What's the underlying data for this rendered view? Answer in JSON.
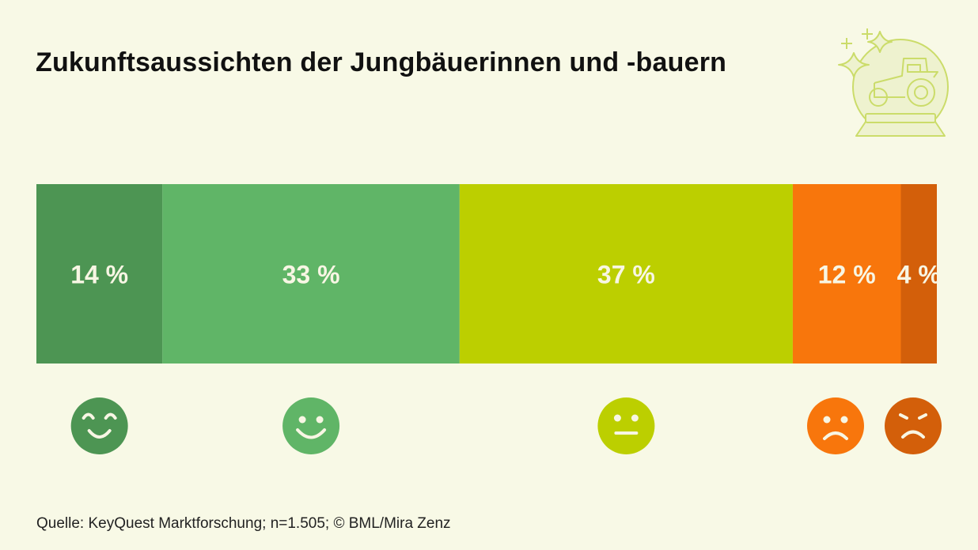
{
  "title": "Zukunftsaussichten der Jungbäuerinnen und -bauern",
  "source": "Quelle: KeyQuest Marktforschung; n=1.505; © BML/Mira Zenz",
  "logo_icon": "crystal-ball-tractor-icon",
  "chart_data": {
    "type": "bar",
    "orientation": "horizontal-stacked-100",
    "title": "Zukunftsaussichten der Jungbäuerinnen und -bauern",
    "xlabel": "",
    "ylabel": "",
    "xlim": [
      0,
      100
    ],
    "grid": false,
    "legend": "icons-below",
    "series": [
      {
        "name": "very-positive",
        "value": 14,
        "label": "14 %",
        "color": "#4d9553",
        "icon": "grinning-face-icon"
      },
      {
        "name": "positive",
        "value": 33,
        "label": "33 %",
        "color": "#60b567",
        "icon": "smiling-face-icon"
      },
      {
        "name": "neutral",
        "value": 37,
        "label": "37 %",
        "color": "#bccf00",
        "icon": "neutral-face-icon"
      },
      {
        "name": "negative",
        "value": 12,
        "label": "12 %",
        "color": "#f8760c",
        "icon": "frowning-face-icon"
      },
      {
        "name": "very-negative",
        "value": 4,
        "label": "4 %",
        "color": "#d35f0a",
        "icon": "angry-face-icon"
      }
    ]
  }
}
